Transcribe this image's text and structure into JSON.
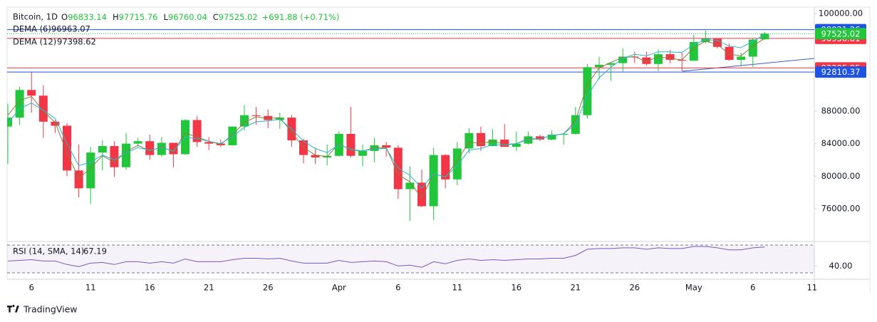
{
  "chart_data": [
    {
      "type": "candlestick",
      "title": "Bitcoin, 1D",
      "ohlc_prefixes": [
        "O",
        "H",
        "L",
        "C"
      ],
      "change": "+691.88 (+0.71%)",
      "categories": [
        null,
        null,
        "6",
        null,
        null,
        null,
        null,
        "11",
        null,
        null,
        null,
        null,
        "16",
        null,
        null,
        null,
        null,
        "21",
        null,
        null,
        null,
        null,
        "26",
        null,
        null,
        null,
        null,
        null,
        "Apr",
        null,
        null,
        null,
        null,
        "6",
        null,
        null,
        null,
        null,
        "11",
        null,
        null,
        null,
        null,
        "16",
        null,
        null,
        null,
        null,
        "21",
        null,
        null,
        null,
        null,
        "26",
        null,
        null,
        null,
        null,
        "May",
        null,
        null,
        null,
        null,
        "6",
        null,
        null,
        null,
        null,
        "11"
      ],
      "open": [
        86100,
        87200,
        90600,
        89900,
        86700,
        86200,
        80700,
        78500,
        82900,
        83700,
        81100,
        84000,
        84300,
        82600,
        84100,
        82700,
        86900,
        84200,
        84000,
        83800,
        86100,
        87500,
        87400,
        86900,
        87200,
        84400,
        82600,
        82300,
        82500,
        85200,
        82500,
        83100,
        83800,
        83500,
        78400,
        79200,
        76300,
        82600,
        79600,
        83400,
        85300,
        83700,
        84500,
        83600,
        84000,
        84900,
        84500,
        85100,
        85200,
        87500,
        93400,
        93700,
        93900,
        94700,
        94600,
        93800,
        95000,
        94300,
        94200,
        96500,
        96900,
        95900,
        94300,
        94700,
        96833.14,
        null,
        null,
        null,
        null
      ],
      "high": [
        88900,
        91000,
        92800,
        91200,
        86900,
        86500,
        83900,
        83600,
        84400,
        84300,
        85300,
        84700,
        85100,
        84800,
        84100,
        87000,
        87400,
        84800,
        84500,
        86100,
        88700,
        88500,
        88200,
        87800,
        87500,
        84600,
        83500,
        83900,
        85500,
        88500,
        83900,
        84700,
        84200,
        83800,
        81200,
        80800,
        83500,
        82700,
        84200,
        85900,
        86100,
        85800,
        86400,
        85500,
        85500,
        85100,
        85600,
        85300,
        88500,
        93800,
        94700,
        94000,
        95700,
        95300,
        95300,
        95600,
        95500,
        95200,
        97400,
        97900,
        96900,
        96300,
        95200,
        96900,
        97715.76,
        null,
        null,
        null,
        null
      ],
      "low": [
        81500,
        86300,
        87800,
        84700,
        85300,
        80000,
        77400,
        76600,
        80700,
        79900,
        80800,
        83600,
        82000,
        82400,
        81100,
        82600,
        83600,
        83200,
        83600,
        83800,
        85600,
        86300,
        85900,
        85800,
        83600,
        81600,
        81500,
        81300,
        82400,
        82300,
        81200,
        81700,
        82400,
        77200,
        74500,
        76200,
        74600,
        78500,
        78900,
        82800,
        83100,
        83700,
        83600,
        83100,
        83900,
        84300,
        84400,
        83900,
        85100,
        87100,
        91900,
        91700,
        92800,
        93900,
        93600,
        92900,
        93900,
        92900,
        94200,
        96300,
        95700,
        94200,
        93500,
        93400,
        96760.04,
        null,
        null,
        null,
        null
      ],
      "close": [
        87200,
        90600,
        89900,
        86700,
        86200,
        80700,
        78500,
        82900,
        83700,
        81100,
        84000,
        84300,
        82600,
        84100,
        82700,
        86900,
        84200,
        84000,
        83800,
        86100,
        87500,
        87400,
        86900,
        87200,
        84400,
        82600,
        82300,
        82500,
        85200,
        82500,
        83100,
        83800,
        83500,
        78400,
        79200,
        76300,
        82600,
        79600,
        83400,
        85300,
        83700,
        84500,
        83600,
        84000,
        84900,
        84500,
        85100,
        85200,
        87500,
        93400,
        93700,
        93900,
        94700,
        94600,
        93800,
        95000,
        94300,
        94200,
        96500,
        96900,
        95900,
        94300,
        94700,
        96800,
        97525.02,
        null,
        null,
        null,
        null
      ],
      "up_color": "#22c63a",
      "down_color": "#f23645",
      "series": [
        {
          "name": "DEMA (6)",
          "color": "#8a7d3c",
          "values": [
            87500,
            89300,
            89800,
            88000,
            86600,
            82900,
            79700,
            81000,
            82500,
            81700,
            83000,
            83800,
            83100,
            83600,
            83000,
            85300,
            84800,
            84300,
            83900,
            85100,
            86600,
            87300,
            87100,
            87200,
            85400,
            83500,
            82600,
            82400,
            84000,
            83200,
            83100,
            83500,
            83500,
            80200,
            79300,
            77300,
            80300,
            79900,
            81900,
            84200,
            84000,
            84300,
            83900,
            84000,
            84600,
            84600,
            85000,
            85200,
            86800,
            91300,
            93300,
            94000,
            94600,
            94700,
            94100,
            94700,
            94500,
            94300,
            95800,
            96600,
            96200,
            95000,
            94800,
            96000,
            96963.07,
            null,
            null,
            null,
            null
          ]
        },
        {
          "name": "DEMA (12)",
          "color": "#26b8d0",
          "values": [
            86500,
            88300,
            89000,
            88100,
            87100,
            84000,
            81300,
            81700,
            82600,
            82000,
            82900,
            83500,
            83200,
            83500,
            83100,
            84800,
            84600,
            84300,
            84000,
            84900,
            86000,
            86700,
            86800,
            87000,
            85800,
            84300,
            83400,
            82900,
            83900,
            83300,
            83100,
            83400,
            83400,
            81000,
            80100,
            78500,
            80300,
            79900,
            81300,
            83200,
            83400,
            83900,
            83800,
            84000,
            84500,
            84600,
            85000,
            85200,
            86400,
            89900,
            92100,
            93400,
            94500,
            95000,
            94800,
            95300,
            95300,
            95200,
            96200,
            96800,
            96700,
            96000,
            95800,
            96600,
            97398.62,
            null,
            null,
            null,
            null
          ]
        }
      ],
      "price_lines": [
        {
          "value": 98021.26,
          "color": "#1e53e5"
        },
        {
          "value": 96950.81,
          "color": "#f23645"
        },
        {
          "value": 93305.85,
          "color": "#f23645"
        },
        {
          "value": 92810.37,
          "color": "#1e53e5"
        }
      ],
      "ylim": [
        72050,
        100790
      ],
      "yticks": [
        {
          "value": 100000,
          "label": "100000.00"
        },
        {
          "value": 88000,
          "label": "88000.00"
        },
        {
          "value": 84000,
          "label": "84000.00"
        },
        {
          "value": 80000,
          "label": "80000.00"
        },
        {
          "value": 76000,
          "label": "76000.00"
        }
      ]
    },
    {
      "type": "line",
      "series": [
        {
          "name": "RSI (14, SMA, 14)",
          "color": "#7e57c2",
          "values": [
            47,
            48,
            49,
            47,
            47,
            42,
            39,
            44,
            45,
            42,
            46,
            46,
            44,
            46,
            44,
            50,
            46,
            46,
            46,
            49,
            51,
            51,
            50,
            51,
            47,
            44,
            44,
            44,
            48,
            45,
            46,
            47,
            46,
            40,
            41,
            38,
            46,
            43,
            48,
            50,
            48,
            49,
            48,
            49,
            50,
            50,
            51,
            51,
            55,
            64,
            65,
            65,
            66,
            66,
            64,
            66,
            65,
            65,
            68,
            68,
            66,
            63,
            63,
            66,
            67.19,
            null,
            null,
            null,
            null
          ]
        }
      ],
      "levels": [
        30,
        70
      ],
      "ylim": [
        21.8,
        73.1
      ],
      "yticks": [
        {
          "value": 40,
          "label": "40.00"
        }
      ]
    }
  ],
  "footer": {
    "brand": "TradingView"
  }
}
